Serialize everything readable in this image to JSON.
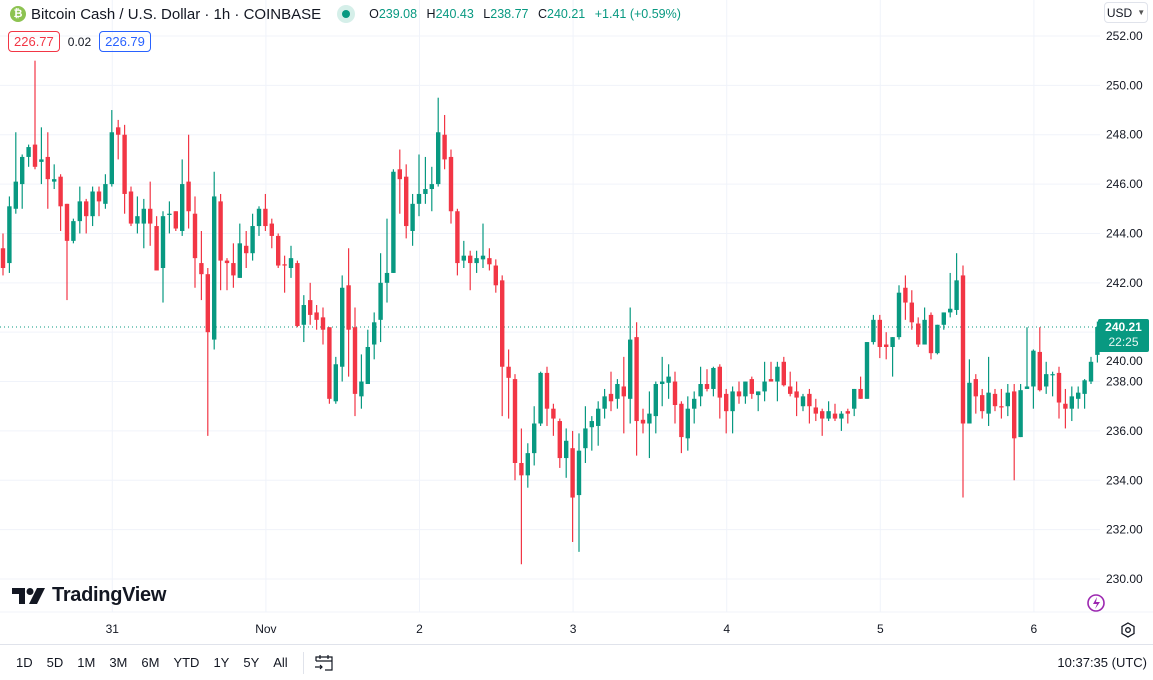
{
  "header": {
    "symbol_title": "Bitcoin Cash / U.S. Dollar · 1h · COINBASE",
    "coin_glyph": "₿",
    "ohlc": {
      "o_label": "O",
      "o": "239.08",
      "h_label": "H",
      "h": "240.43",
      "l_label": "L",
      "l": "238.77",
      "c_label": "C",
      "c": "240.21",
      "change": "+1.41 (+0.59%)"
    },
    "sell_price": "226.77",
    "spread": "0.02",
    "buy_price": "226.79"
  },
  "currency": {
    "label": "USD",
    "icon": "chevron-down-icon"
  },
  "last_price": {
    "price": "240.21",
    "countdown": "22:25"
  },
  "logo_text": "TradingView",
  "toolbar": {
    "ranges": [
      "1D",
      "5D",
      "1M",
      "3M",
      "6M",
      "YTD",
      "1Y",
      "5Y",
      "All"
    ],
    "date_range_icon": "calendar-goto-icon",
    "clock": "10:37:35 (UTC)"
  },
  "colors": {
    "up": "#089981",
    "down": "#f23645",
    "grid": "#f0f3fa",
    "accent": "#2962ff"
  },
  "chart_data": {
    "type": "candlestick",
    "title": "Bitcoin Cash / U.S. Dollar · 1h · COINBASE",
    "interval": "1h",
    "ylim": [
      230,
      252
    ],
    "y_ticks": [
      "252.00",
      "250.00",
      "248.00",
      "246.00",
      "244.00",
      "242.00",
      "240.00",
      "238.00",
      "236.00",
      "234.00",
      "232.00",
      "230.00"
    ],
    "x_ticks": [
      {
        "label": "31",
        "candle": 17
      },
      {
        "label": "Nov",
        "candle": 41
      },
      {
        "label": "2",
        "candle": 65
      },
      {
        "label": "3",
        "candle": 89
      },
      {
        "label": "4",
        "candle": 113
      },
      {
        "label": "5",
        "candle": 137
      },
      {
        "label": "6",
        "candle": 161
      }
    ],
    "grid": true,
    "ohlc_format": [
      "open",
      "high",
      "low",
      "close"
    ],
    "candles": [
      [
        243.4,
        244.0,
        242.3,
        242.6
      ],
      [
        242.8,
        245.5,
        242.4,
        245.1
      ],
      [
        245.0,
        248.1,
        244.8,
        246.1
      ],
      [
        246.0,
        247.2,
        245.0,
        247.1
      ],
      [
        247.1,
        247.6,
        246.7,
        247.5
      ],
      [
        247.6,
        251.0,
        246.6,
        246.7
      ],
      [
        246.9,
        248.3,
        246.0,
        247.0
      ],
      [
        247.1,
        248.1,
        245.0,
        246.2
      ],
      [
        246.1,
        246.8,
        245.8,
        246.2
      ],
      [
        246.3,
        246.4,
        244.1,
        245.1
      ],
      [
        245.2,
        245.2,
        241.3,
        243.7
      ],
      [
        243.7,
        244.6,
        243.6,
        244.5
      ],
      [
        244.5,
        245.9,
        244.0,
        245.3
      ],
      [
        245.3,
        245.4,
        244.0,
        244.7
      ],
      [
        244.7,
        245.9,
        244.3,
        245.7
      ],
      [
        245.7,
        245.9,
        244.7,
        245.3
      ],
      [
        245.2,
        246.4,
        245.0,
        246.0
      ],
      [
        246.0,
        249.0,
        245.9,
        248.1
      ],
      [
        248.3,
        248.6,
        247.0,
        248.0
      ],
      [
        248.0,
        248.4,
        244.8,
        245.6
      ],
      [
        245.7,
        245.9,
        244.3,
        244.4
      ],
      [
        244.4,
        245.5,
        244.0,
        244.7
      ],
      [
        244.4,
        245.4,
        243.4,
        245.0
      ],
      [
        245.0,
        246.1,
        243.5,
        244.4
      ],
      [
        244.3,
        244.7,
        242.5,
        242.5
      ],
      [
        242.6,
        244.9,
        241.2,
        244.7
      ],
      [
        244.75,
        245.3,
        244.0,
        244.8
      ],
      [
        244.9,
        244.9,
        244.1,
        244.2
      ],
      [
        244.1,
        247.0,
        243.9,
        246.0
      ],
      [
        246.1,
        248.0,
        244.2,
        244.9
      ],
      [
        244.8,
        245.5,
        241.8,
        243.0
      ],
      [
        242.8,
        244.1,
        241.3,
        242.35
      ],
      [
        242.35,
        242.6,
        235.8,
        240.0
      ],
      [
        239.7,
        246.5,
        239.3,
        245.5
      ],
      [
        245.3,
        245.6,
        241.7,
        242.9
      ],
      [
        242.9,
        243.0,
        241.7,
        242.8
      ],
      [
        242.8,
        243.6,
        241.8,
        242.3
      ],
      [
        242.2,
        244.4,
        242.2,
        243.6
      ],
      [
        243.5,
        244.1,
        242.6,
        243.2
      ],
      [
        243.2,
        244.8,
        242.9,
        244.3
      ],
      [
        244.3,
        245.1,
        243.9,
        245.0
      ],
      [
        245.0,
        245.6,
        244.1,
        244.3
      ],
      [
        244.4,
        244.6,
        243.4,
        243.9
      ],
      [
        243.9,
        244.0,
        242.6,
        242.7
      ],
      [
        242.75,
        243.1,
        241.6,
        242.7
      ],
      [
        242.6,
        243.5,
        242.2,
        243.0
      ],
      [
        242.8,
        242.9,
        240.2,
        240.25
      ],
      [
        240.3,
        241.5,
        239.6,
        241.1
      ],
      [
        241.3,
        242.0,
        240.3,
        240.7
      ],
      [
        240.8,
        241.1,
        240.1,
        240.5
      ],
      [
        240.6,
        241.0,
        239.5,
        240.1
      ],
      [
        240.2,
        240.2,
        237.1,
        237.3
      ],
      [
        237.2,
        239.0,
        237.1,
        238.7
      ],
      [
        238.6,
        242.3,
        238.0,
        241.8
      ],
      [
        241.9,
        243.4,
        238.2,
        240.1
      ],
      [
        240.2,
        241.0,
        236.6,
        237.5
      ],
      [
        237.4,
        239.1,
        236.9,
        238.0
      ],
      [
        237.9,
        240.1,
        237.9,
        239.4
      ],
      [
        239.5,
        240.8,
        238.9,
        240.4
      ],
      [
        240.5,
        243.2,
        239.6,
        242.0
      ],
      [
        242.0,
        244.6,
        241.2,
        242.4
      ],
      [
        242.4,
        246.6,
        242.4,
        246.5
      ],
      [
        246.6,
        247.4,
        244.8,
        246.2
      ],
      [
        246.3,
        246.8,
        243.8,
        244.3
      ],
      [
        244.1,
        245.6,
        243.5,
        245.2
      ],
      [
        245.2,
        247.2,
        244.7,
        245.6
      ],
      [
        245.6,
        247.1,
        245.2,
        245.8
      ],
      [
        245.8,
        246.7,
        244.9,
        246.0
      ],
      [
        246.0,
        249.5,
        245.9,
        248.1
      ],
      [
        248.0,
        248.8,
        246.6,
        247.0
      ],
      [
        247.1,
        247.4,
        244.4,
        244.9
      ],
      [
        244.9,
        245.0,
        242.3,
        242.8
      ],
      [
        242.9,
        243.7,
        242.6,
        243.1
      ],
      [
        243.1,
        243.3,
        241.7,
        242.8
      ],
      [
        242.8,
        243.3,
        242.4,
        243.0
      ],
      [
        242.95,
        244.4,
        242.6,
        243.1
      ],
      [
        243.0,
        243.4,
        242.5,
        242.75
      ],
      [
        242.7,
        242.95,
        241.6,
        241.9
      ],
      [
        242.1,
        242.3,
        236.6,
        238.6
      ],
      [
        238.6,
        239.3,
        236.5,
        238.15
      ],
      [
        238.1,
        238.3,
        234.0,
        234.7
      ],
      [
        234.7,
        236.1,
        230.6,
        234.2
      ],
      [
        234.2,
        235.5,
        233.7,
        235.1
      ],
      [
        235.1,
        237.0,
        234.6,
        236.3
      ],
      [
        236.3,
        238.4,
        236.2,
        238.35
      ],
      [
        238.35,
        238.6,
        236.2,
        236.9
      ],
      [
        236.9,
        237.1,
        235.8,
        236.5
      ],
      [
        236.4,
        236.5,
        234.5,
        234.9
      ],
      [
        234.9,
        236.1,
        234.1,
        235.6
      ],
      [
        235.3,
        236.0,
        231.5,
        233.3
      ],
      [
        233.4,
        235.9,
        231.1,
        235.2
      ],
      [
        235.3,
        237.0,
        234.7,
        236.1
      ],
      [
        236.15,
        236.6,
        235.2,
        236.4
      ],
      [
        236.2,
        237.2,
        235.4,
        236.9
      ],
      [
        236.9,
        237.7,
        236.5,
        237.4
      ],
      [
        237.5,
        238.4,
        236.8,
        237.2
      ],
      [
        237.3,
        238.1,
        236.9,
        237.9
      ],
      [
        237.8,
        239.0,
        235.9,
        237.4
      ],
      [
        237.3,
        241.0,
        236.3,
        239.7
      ],
      [
        239.8,
        240.4,
        235.0,
        236.4
      ],
      [
        236.45,
        236.9,
        235.9,
        236.3
      ],
      [
        236.3,
        237.6,
        234.9,
        236.7
      ],
      [
        236.6,
        238.0,
        235.9,
        237.9
      ],
      [
        237.9,
        239.0,
        237.0,
        238.0
      ],
      [
        237.95,
        238.7,
        237.3,
        238.2
      ],
      [
        238.0,
        238.4,
        236.3,
        237.05
      ],
      [
        237.1,
        237.2,
        235.1,
        235.75
      ],
      [
        235.7,
        237.4,
        235.2,
        236.9
      ],
      [
        236.9,
        237.6,
        236.3,
        237.3
      ],
      [
        237.4,
        238.6,
        237.0,
        237.9
      ],
      [
        237.9,
        238.5,
        237.6,
        237.7
      ],
      [
        237.7,
        238.6,
        237.4,
        238.55
      ],
      [
        238.6,
        238.7,
        236.5,
        237.35
      ],
      [
        237.5,
        237.7,
        235.9,
        236.8
      ],
      [
        236.8,
        237.8,
        235.9,
        237.6
      ],
      [
        237.6,
        238.0,
        237.1,
        237.4
      ],
      [
        237.4,
        238.0,
        237.1,
        238.0
      ],
      [
        238.1,
        238.2,
        237.3,
        237.5
      ],
      [
        237.45,
        237.6,
        236.8,
        237.6
      ],
      [
        237.6,
        238.8,
        237.2,
        238.0
      ],
      [
        238.1,
        238.8,
        238.0,
        238.0
      ],
      [
        238.0,
        238.8,
        237.2,
        238.6
      ],
      [
        238.8,
        239.0,
        237.8,
        237.85
      ],
      [
        237.8,
        238.4,
        237.4,
        237.5
      ],
      [
        237.6,
        238.0,
        236.6,
        237.35
      ],
      [
        237.0,
        237.5,
        236.8,
        237.4
      ],
      [
        237.5,
        237.7,
        236.3,
        237.0
      ],
      [
        236.95,
        237.3,
        236.4,
        236.7
      ],
      [
        236.8,
        236.9,
        235.8,
        236.5
      ],
      [
        236.5,
        237.2,
        236.4,
        236.8
      ],
      [
        236.7,
        237.1,
        236.4,
        236.5
      ],
      [
        236.5,
        236.8,
        236.0,
        236.7
      ],
      [
        236.8,
        236.9,
        236.3,
        236.7
      ],
      [
        236.9,
        237.7,
        236.6,
        237.7
      ],
      [
        237.7,
        238.2,
        237.3,
        237.3
      ],
      [
        237.3,
        239.6,
        237.3,
        239.6
      ],
      [
        239.6,
        240.7,
        239.5,
        240.5
      ],
      [
        240.5,
        240.7,
        238.95,
        239.4
      ],
      [
        239.5,
        240.0,
        238.9,
        239.4
      ],
      [
        239.4,
        239.8,
        238.2,
        239.8
      ],
      [
        239.8,
        241.9,
        239.7,
        241.6
      ],
      [
        241.8,
        242.3,
        240.5,
        241.2
      ],
      [
        241.2,
        241.7,
        240.1,
        240.4
      ],
      [
        240.35,
        240.6,
        239.4,
        239.5
      ],
      [
        239.5,
        241.0,
        239.5,
        240.5
      ],
      [
        240.7,
        240.8,
        238.9,
        239.15
      ],
      [
        239.15,
        240.3,
        239.1,
        240.3
      ],
      [
        240.3,
        240.8,
        240.1,
        240.8
      ],
      [
        240.8,
        242.4,
        240.6,
        240.95
      ],
      [
        240.9,
        243.2,
        240.7,
        242.1
      ],
      [
        242.3,
        242.7,
        233.3,
        236.3
      ],
      [
        236.3,
        238.9,
        236.3,
        237.95
      ],
      [
        238.1,
        238.3,
        236.7,
        237.4
      ],
      [
        237.45,
        237.7,
        236.5,
        236.8
      ],
      [
        236.7,
        239.0,
        236.2,
        237.55
      ],
      [
        237.5,
        237.7,
        236.8,
        237.0
      ],
      [
        237.0,
        237.7,
        236.5,
        236.95
      ],
      [
        237.0,
        237.9,
        236.6,
        237.55
      ],
      [
        237.6,
        237.9,
        234.0,
        235.7
      ],
      [
        235.75,
        237.9,
        235.75,
        237.65
      ],
      [
        237.7,
        240.2,
        237.7,
        237.8
      ],
      [
        237.8,
        239.3,
        236.9,
        239.25
      ],
      [
        239.2,
        240.2,
        237.6,
        237.65
      ],
      [
        237.8,
        238.8,
        237.5,
        238.3
      ],
      [
        238.3,
        238.4,
        237.4,
        238.3
      ],
      [
        238.35,
        238.6,
        236.5,
        237.15
      ],
      [
        237.1,
        237.7,
        236.1,
        236.9
      ],
      [
        236.9,
        237.8,
        236.4,
        237.4
      ],
      [
        237.3,
        237.8,
        236.9,
        237.55
      ],
      [
        237.5,
        238.1,
        236.9,
        238.05
      ],
      [
        238.0,
        239.0,
        237.9,
        238.8
      ],
      [
        239.08,
        240.43,
        238.77,
        240.21
      ]
    ],
    "last_price_line": 240.21
  }
}
